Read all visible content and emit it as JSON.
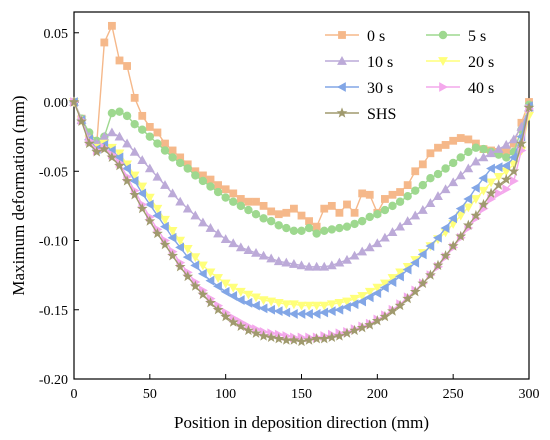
{
  "chart_data": {
    "type": "line",
    "title": "",
    "xlabel": "Position in deposition direction (mm)",
    "ylabel": "Maximum deformation (mm)",
    "xlim": [
      0,
      300
    ],
    "ylim": [
      -0.2,
      0.065
    ],
    "xticks": [
      "0",
      "50",
      "100",
      "150",
      "200",
      "250",
      "300"
    ],
    "yticks": [
      "0.05",
      "0.00",
      "-0.05",
      "-0.10",
      "-0.15",
      "-0.20"
    ],
    "grid": false,
    "legend_position": "top-right",
    "x": [
      0,
      5,
      10,
      15,
      20,
      25,
      30,
      35,
      40,
      45,
      50,
      55,
      60,
      65,
      70,
      75,
      80,
      85,
      90,
      95,
      100,
      105,
      110,
      115,
      120,
      125,
      130,
      135,
      140,
      145,
      150,
      155,
      160,
      165,
      170,
      175,
      180,
      185,
      190,
      195,
      200,
      205,
      210,
      215,
      220,
      225,
      230,
      235,
      240,
      245,
      250,
      255,
      260,
      265,
      270,
      275,
      280,
      285,
      290,
      295,
      300
    ],
    "series": [
      {
        "name": "0 s",
        "color": "#f5b88a",
        "marker": "square",
        "values": [
          0,
          -0.012,
          -0.025,
          -0.03,
          0.043,
          0.055,
          0.03,
          0.026,
          0.003,
          -0.01,
          -0.018,
          -0.022,
          -0.03,
          -0.035,
          -0.04,
          -0.045,
          -0.05,
          -0.053,
          -0.056,
          -0.06,
          -0.063,
          -0.066,
          -0.07,
          -0.072,
          -0.072,
          -0.075,
          -0.079,
          -0.081,
          -0.08,
          -0.077,
          -0.082,
          -0.086,
          -0.09,
          -0.077,
          -0.075,
          -0.08,
          -0.074,
          -0.08,
          -0.066,
          -0.067,
          -0.08,
          -0.07,
          -0.067,
          -0.065,
          -0.06,
          -0.05,
          -0.045,
          -0.037,
          -0.033,
          -0.031,
          -0.028,
          -0.026,
          -0.027,
          -0.03,
          -0.034,
          -0.035,
          -0.036,
          -0.036,
          -0.03,
          -0.015,
          0.0
        ]
      },
      {
        "name": "5 s",
        "color": "#9ed88f",
        "marker": "circle",
        "values": [
          0,
          -0.012,
          -0.022,
          -0.028,
          -0.025,
          -0.008,
          -0.007,
          -0.01,
          -0.016,
          -0.02,
          -0.025,
          -0.03,
          -0.035,
          -0.04,
          -0.044,
          -0.048,
          -0.053,
          -0.057,
          -0.061,
          -0.065,
          -0.069,
          -0.072,
          -0.075,
          -0.078,
          -0.081,
          -0.084,
          -0.086,
          -0.089,
          -0.091,
          -0.093,
          -0.093,
          -0.091,
          -0.095,
          -0.093,
          -0.092,
          -0.091,
          -0.09,
          -0.088,
          -0.086,
          -0.083,
          -0.081,
          -0.078,
          -0.075,
          -0.072,
          -0.068,
          -0.064,
          -0.06,
          -0.055,
          -0.052,
          -0.048,
          -0.044,
          -0.04,
          -0.036,
          -0.033,
          -0.034,
          -0.036,
          -0.038,
          -0.04,
          -0.036,
          -0.02,
          -0.002
        ]
      },
      {
        "name": "10 s",
        "color": "#bcaad8",
        "marker": "triangle-up",
        "values": [
          0,
          -0.013,
          -0.025,
          -0.03,
          -0.025,
          -0.022,
          -0.025,
          -0.03,
          -0.036,
          -0.042,
          -0.048,
          -0.054,
          -0.06,
          -0.066,
          -0.072,
          -0.077,
          -0.082,
          -0.087,
          -0.091,
          -0.095,
          -0.099,
          -0.102,
          -0.105,
          -0.107,
          -0.109,
          -0.111,
          -0.113,
          -0.115,
          -0.116,
          -0.117,
          -0.118,
          -0.119,
          -0.119,
          -0.119,
          -0.118,
          -0.116,
          -0.114,
          -0.111,
          -0.108,
          -0.105,
          -0.102,
          -0.098,
          -0.094,
          -0.09,
          -0.086,
          -0.082,
          -0.078,
          -0.073,
          -0.068,
          -0.063,
          -0.058,
          -0.053,
          -0.048,
          -0.043,
          -0.04,
          -0.037,
          -0.034,
          -0.031,
          -0.027,
          -0.018,
          -0.004
        ]
      },
      {
        "name": "20 s",
        "color": "#ffff7a",
        "marker": "triangle-down",
        "values": [
          0,
          -0.013,
          -0.027,
          -0.033,
          -0.03,
          -0.033,
          -0.037,
          -0.045,
          -0.053,
          -0.061,
          -0.069,
          -0.077,
          -0.085,
          -0.093,
          -0.1,
          -0.106,
          -0.112,
          -0.118,
          -0.123,
          -0.127,
          -0.131,
          -0.134,
          -0.137,
          -0.139,
          -0.141,
          -0.143,
          -0.144,
          -0.145,
          -0.146,
          -0.146,
          -0.147,
          -0.147,
          -0.147,
          -0.147,
          -0.146,
          -0.145,
          -0.144,
          -0.142,
          -0.14,
          -0.137,
          -0.134,
          -0.131,
          -0.127,
          -0.123,
          -0.119,
          -0.114,
          -0.109,
          -0.104,
          -0.099,
          -0.094,
          -0.088,
          -0.082,
          -0.076,
          -0.07,
          -0.064,
          -0.058,
          -0.054,
          -0.05,
          -0.045,
          -0.035,
          -0.01
        ]
      },
      {
        "name": "30 s",
        "color": "#82a6e6",
        "marker": "triangle-left",
        "values": [
          0,
          -0.013,
          -0.027,
          -0.034,
          -0.031,
          -0.035,
          -0.04,
          -0.048,
          -0.057,
          -0.066,
          -0.074,
          -0.082,
          -0.09,
          -0.098,
          -0.105,
          -0.112,
          -0.118,
          -0.124,
          -0.129,
          -0.133,
          -0.137,
          -0.14,
          -0.143,
          -0.145,
          -0.147,
          -0.149,
          -0.15,
          -0.151,
          -0.152,
          -0.153,
          -0.153,
          -0.153,
          -0.153,
          -0.152,
          -0.151,
          -0.15,
          -0.148,
          -0.146,
          -0.144,
          -0.141,
          -0.138,
          -0.134,
          -0.13,
          -0.126,
          -0.121,
          -0.116,
          -0.11,
          -0.104,
          -0.098,
          -0.091,
          -0.084,
          -0.077,
          -0.07,
          -0.062,
          -0.055,
          -0.048,
          -0.047,
          -0.046,
          -0.04,
          -0.025,
          -0.003
        ]
      },
      {
        "name": "40 s",
        "color": "#f4a8ec",
        "marker": "triangle-right",
        "values": [
          0,
          -0.013,
          -0.028,
          -0.035,
          -0.033,
          -0.038,
          -0.044,
          -0.054,
          -0.064,
          -0.074,
          -0.083,
          -0.092,
          -0.1,
          -0.108,
          -0.116,
          -0.123,
          -0.13,
          -0.136,
          -0.142,
          -0.147,
          -0.152,
          -0.156,
          -0.159,
          -0.162,
          -0.164,
          -0.166,
          -0.167,
          -0.168,
          -0.169,
          -0.17,
          -0.17,
          -0.17,
          -0.17,
          -0.169,
          -0.168,
          -0.167,
          -0.166,
          -0.164,
          -0.162,
          -0.16,
          -0.157,
          -0.154,
          -0.15,
          -0.146,
          -0.141,
          -0.136,
          -0.131,
          -0.125,
          -0.119,
          -0.112,
          -0.105,
          -0.098,
          -0.091,
          -0.084,
          -0.077,
          -0.07,
          -0.066,
          -0.063,
          -0.057,
          -0.035,
          -0.005
        ]
      },
      {
        "name": "SHS",
        "color": "#a09a6e",
        "marker": "star",
        "values": [
          0,
          -0.014,
          -0.03,
          -0.036,
          -0.034,
          -0.04,
          -0.046,
          -0.057,
          -0.067,
          -0.077,
          -0.086,
          -0.095,
          -0.103,
          -0.111,
          -0.119,
          -0.126,
          -0.133,
          -0.139,
          -0.145,
          -0.15,
          -0.155,
          -0.159,
          -0.162,
          -0.165,
          -0.167,
          -0.169,
          -0.17,
          -0.171,
          -0.172,
          -0.172,
          -0.173,
          -0.172,
          -0.171,
          -0.171,
          -0.17,
          -0.169,
          -0.167,
          -0.165,
          -0.163,
          -0.161,
          -0.158,
          -0.155,
          -0.151,
          -0.147,
          -0.142,
          -0.137,
          -0.131,
          -0.125,
          -0.118,
          -0.111,
          -0.104,
          -0.097,
          -0.089,
          -0.082,
          -0.074,
          -0.066,
          -0.06,
          -0.056,
          -0.05,
          -0.03,
          -0.004
        ]
      }
    ]
  }
}
